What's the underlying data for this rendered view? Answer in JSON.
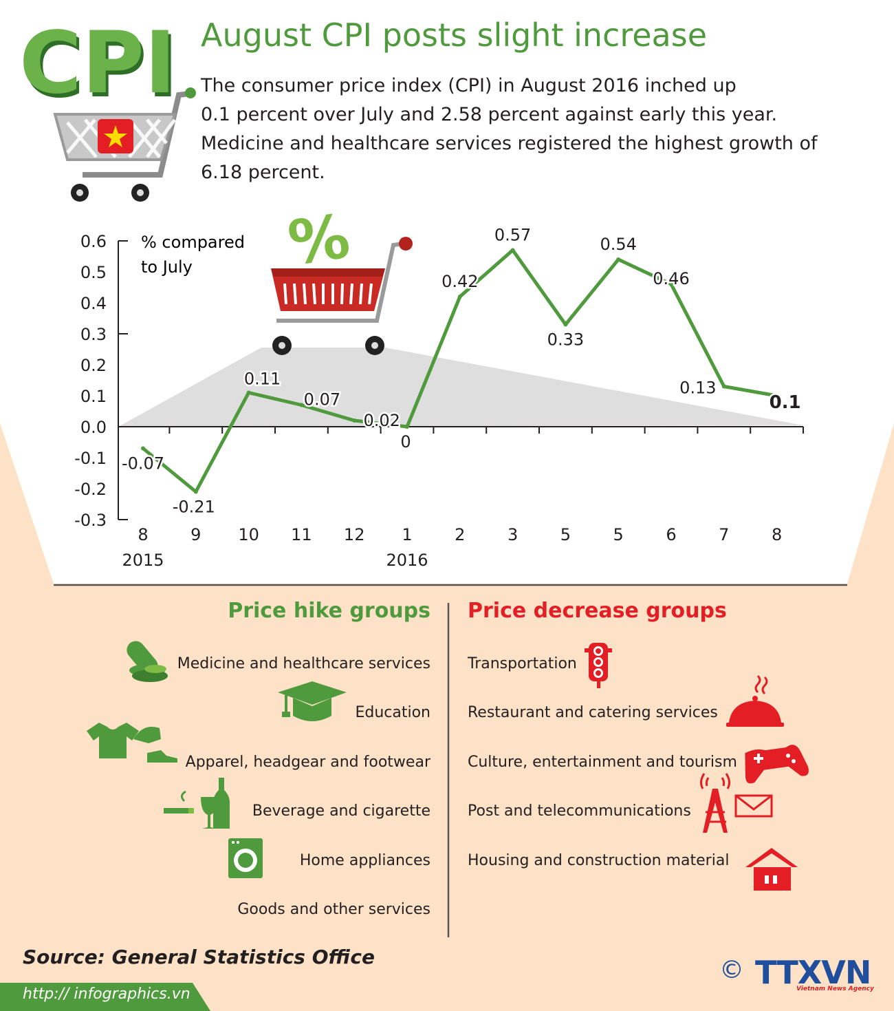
{
  "header": {
    "logo_text": "CPI",
    "title": "August CPI posts slight increase",
    "intro_lines": [
      "The consumer price index (CPI) in August 2016 inched up",
      "0.1 percent over July and 2.58 percent against early this year.",
      "Medicine and healthcare services registered the highest growth of",
      "6.18 percent."
    ]
  },
  "chart_data": {
    "type": "line",
    "ylabel_lines": [
      "% compared",
      "to July"
    ],
    "ylim": [
      -0.3,
      0.6
    ],
    "yticks": [
      "0.6",
      "0.5",
      "0.4",
      "0.3",
      "0.2",
      "0.1",
      "0.0",
      "-0.1",
      "-0.2",
      "-0.3"
    ],
    "categories": [
      "8",
      "9",
      "10",
      "11",
      "12",
      "1",
      "2",
      "3",
      "5",
      "5",
      "6",
      "7",
      "8"
    ],
    "year_labels": [
      {
        "index": 0,
        "text": "2015"
      },
      {
        "index": 5,
        "text": "2016"
      }
    ],
    "series": [
      {
        "values": [
          -0.07,
          -0.21,
          0.11,
          0.07,
          0.02,
          0,
          0.42,
          0.57,
          0.33,
          0.54,
          0.46,
          0.13,
          0.1
        ]
      }
    ],
    "value_labels": [
      "-0.07",
      "-0.21",
      "0.11",
      "0.07",
      "0.02",
      "0",
      "0.42",
      "0.57",
      "0.33",
      "0.54",
      "0.46",
      "0.13",
      "0.1"
    ],
    "line_color": "#4f9a3c",
    "grid": false
  },
  "cart_badge": "%",
  "hike": {
    "heading": "Price hike groups",
    "color": "#4f9a3c",
    "items": [
      "Medicine and healthcare services",
      "Education",
      "Apparel, headgear and footwear",
      "Beverage and cigarette",
      "Home appliances",
      "Goods and other services"
    ],
    "icons": [
      "pills-icon",
      "graduation-cap-icon",
      "tshirt-cap-shoe-icon",
      "cigarette-bottle-icon",
      "washing-machine-icon"
    ]
  },
  "decrease": {
    "heading": "Price decrease groups",
    "color": "#e31e24",
    "items": [
      "Transportation",
      "Restaurant and catering services",
      "Culture, entertainment and tourism",
      "Post and telecommunications",
      "Housing and construction material"
    ],
    "icons": [
      "traffic-light-icon",
      "food-cloche-icon",
      "gamepad-icon",
      "antenna-envelope-icon",
      "house-icon"
    ]
  },
  "footer": {
    "source": "Source: General Statistics Office",
    "url": "http:// infographics.vn",
    "copyright": "©",
    "agency_logo": "TTXVN",
    "agency_sub": "Vietnam News Agency"
  }
}
